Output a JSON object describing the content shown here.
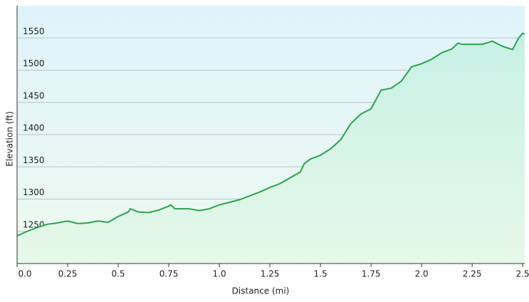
{
  "chart_data": {
    "type": "line",
    "x_label": "Distance (mi)",
    "y_label": "Elevation (ft)",
    "x": [
      0,
      0.05,
      0.1,
      0.15,
      0.2,
      0.25,
      0.3,
      0.35,
      0.4,
      0.45,
      0.5,
      0.55,
      0.56,
      0.6,
      0.65,
      0.7,
      0.75,
      0.76,
      0.78,
      0.85,
      0.9,
      0.95,
      1.0,
      1.05,
      1.1,
      1.15,
      1.2,
      1.25,
      1.3,
      1.35,
      1.4,
      1.42,
      1.45,
      1.5,
      1.55,
      1.6,
      1.65,
      1.7,
      1.75,
      1.8,
      1.85,
      1.9,
      1.95,
      2.0,
      2.05,
      2.1,
      2.15,
      2.18,
      2.2,
      2.3,
      2.35,
      2.4,
      2.45,
      2.48,
      2.5,
      2.51
    ],
    "series": [
      {
        "name": "Elevation",
        "color": "#2ca24a",
        "values": [
          1243,
          1250,
          1256,
          1261,
          1263,
          1266,
          1262,
          1263,
          1266,
          1264,
          1273,
          1280,
          1285,
          1280,
          1279,
          1283,
          1289,
          1291,
          1285,
          1285,
          1282,
          1285,
          1291,
          1295,
          1299,
          1305,
          1311,
          1318,
          1324,
          1333,
          1342,
          1355,
          1362,
          1368,
          1378,
          1392,
          1417,
          1432,
          1440,
          1469,
          1472,
          1483,
          1505,
          1510,
          1517,
          1527,
          1533,
          1542,
          1540,
          1540,
          1545,
          1537,
          1532,
          1550,
          1557,
          1556
        ]
      }
    ],
    "xlim": [
      0,
      2.51
    ],
    "ylim": [
      1200,
      1600
    ],
    "xticks": [
      {
        "value": 0,
        "label": "0.0"
      },
      0.25,
      0.5,
      0.75,
      {
        "value": 1,
        "label": "1.0"
      },
      1.25,
      1.5,
      1.75,
      {
        "value": 2,
        "label": "2.0"
      },
      2.25,
      2.5
    ],
    "yticks": [
      1250,
      1300,
      1350,
      1400,
      1450,
      1500,
      1550
    ],
    "grid": true
  }
}
